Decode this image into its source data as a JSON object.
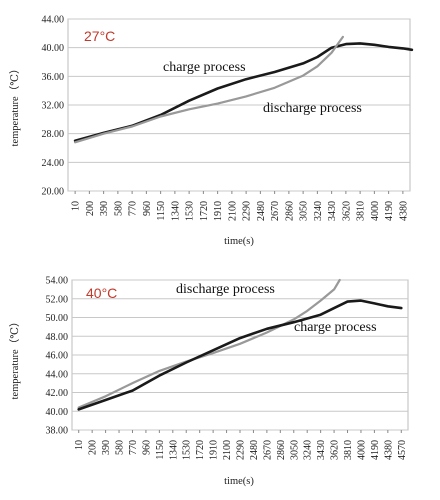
{
  "chart_data": [
    {
      "type": "line",
      "temperature_label": "27°C",
      "ylabel": "temperature（℃）",
      "xlabel": "time(s)",
      "ylim": [
        20,
        44
      ],
      "yticks": [
        "20.00",
        "24.00",
        "28.00",
        "32.00",
        "36.00",
        "40.00",
        "44.00"
      ],
      "categories": [
        "10",
        "200",
        "390",
        "580",
        "770",
        "960",
        "1150",
        "1340",
        "1530",
        "1720",
        "1910",
        "2100",
        "2290",
        "2480",
        "2670",
        "2860",
        "3050",
        "3240",
        "3430",
        "3620",
        "3810",
        "4000",
        "4190",
        "4380"
      ],
      "grid": true,
      "series": [
        {
          "name": "charge process",
          "color": "#1a1a1a",
          "points": [
            [
              10,
              27.0
            ],
            [
              390,
              28.1
            ],
            [
              770,
              29.1
            ],
            [
              1150,
              30.6
            ],
            [
              1530,
              32.6
            ],
            [
              1910,
              34.3
            ],
            [
              2290,
              35.6
            ],
            [
              2670,
              36.6
            ],
            [
              3050,
              37.8
            ],
            [
              3240,
              38.7
            ],
            [
              3430,
              40.0
            ],
            [
              3620,
              40.5
            ],
            [
              3810,
              40.6
            ],
            [
              4000,
              40.4
            ],
            [
              4190,
              40.1
            ],
            [
              4380,
              39.9
            ],
            [
              4500,
              39.7
            ]
          ]
        },
        {
          "name": "discharge process",
          "color": "#999999",
          "points": [
            [
              10,
              26.8
            ],
            [
              390,
              28.0
            ],
            [
              770,
              29.0
            ],
            [
              1150,
              30.4
            ],
            [
              1530,
              31.4
            ],
            [
              1910,
              32.2
            ],
            [
              2290,
              33.2
            ],
            [
              2670,
              34.4
            ],
            [
              3050,
              36.1
            ],
            [
              3240,
              37.4
            ],
            [
              3430,
              39.3
            ],
            [
              3580,
              41.5
            ]
          ]
        }
      ]
    },
    {
      "type": "line",
      "temperature_label": "40°C",
      "ylabel": "temperature（℃）",
      "xlabel": "time(s)",
      "ylim": [
        38,
        54
      ],
      "yticks": [
        "38.00",
        "40.00",
        "42.00",
        "44.00",
        "46.00",
        "48.00",
        "50.00",
        "52.00",
        "54.00"
      ],
      "categories": [
        "10",
        "200",
        "390",
        "580",
        "770",
        "960",
        "1150",
        "1340",
        "1530",
        "1720",
        "1910",
        "2100",
        "2290",
        "2480",
        "2670",
        "2860",
        "3050",
        "3240",
        "3430",
        "3620",
        "3810",
        "4000",
        "4190",
        "4380",
        "4570"
      ],
      "grid": true,
      "series": [
        {
          "name": "discharge process",
          "color": "#999999",
          "points": [
            [
              10,
              40.4
            ],
            [
              390,
              41.6
            ],
            [
              770,
              43.0
            ],
            [
              1150,
              44.3
            ],
            [
              1530,
              45.3
            ],
            [
              1910,
              46.2
            ],
            [
              2290,
              47.2
            ],
            [
              2670,
              48.4
            ],
            [
              3050,
              49.8
            ],
            [
              3240,
              50.7
            ],
            [
              3430,
              51.8
            ],
            [
              3620,
              53.0
            ],
            [
              3700,
              54.0
            ]
          ]
        },
        {
          "name": "charge process",
          "color": "#1a1a1a",
          "points": [
            [
              10,
              40.2
            ],
            [
              390,
              41.2
            ],
            [
              770,
              42.2
            ],
            [
              1150,
              43.8
            ],
            [
              1530,
              45.2
            ],
            [
              1910,
              46.5
            ],
            [
              2290,
              47.8
            ],
            [
              2670,
              48.8
            ],
            [
              3050,
              49.5
            ],
            [
              3430,
              50.3
            ],
            [
              3620,
              51.0
            ],
            [
              3810,
              51.7
            ],
            [
              4000,
              51.8
            ],
            [
              4190,
              51.5
            ],
            [
              4380,
              51.2
            ],
            [
              4570,
              51.0
            ]
          ]
        }
      ]
    }
  ]
}
